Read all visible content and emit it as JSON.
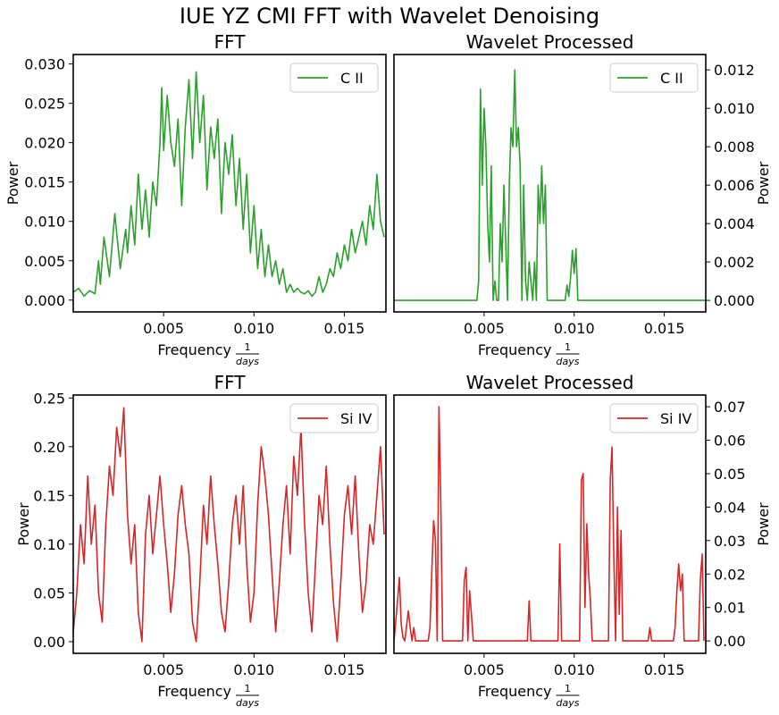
{
  "figure": {
    "suptitle": "IUE YZ CMI FFT with Wavelet Denoising"
  },
  "colors": {
    "c2": "#2ca02c",
    "si4": "#d62728"
  },
  "chart_data": [
    {
      "id": "fft-c2",
      "type": "line",
      "title": "FFT",
      "xlabel": "Frequency",
      "xlabel_fraction": {
        "num": "1",
        "den": "days"
      },
      "ylabel": "Power",
      "ylabel_side": "left",
      "xlim": [
        0.0,
        0.0173
      ],
      "ylim": [
        -0.0015,
        0.0312
      ],
      "xticks": [
        0.005,
        0.01,
        0.015
      ],
      "xtick_labels": [
        "0.005",
        "0.010",
        "0.015"
      ],
      "yticks": [
        0.0,
        0.005,
        0.01,
        0.015,
        0.02,
        0.025,
        0.03
      ],
      "ytick_labels": [
        "0.000",
        "0.005",
        "0.010",
        "0.015",
        "0.020",
        "0.025",
        "0.030"
      ],
      "grid": false,
      "legend_position": "top-right",
      "series": [
        {
          "name": "C II",
          "color": "#2ca02c",
          "x": [
            0.0,
            0.0003,
            0.0006,
            0.0009,
            0.0012,
            0.0014,
            0.0015,
            0.0017,
            0.002,
            0.0023,
            0.0026,
            0.0029,
            0.003,
            0.0032,
            0.0034,
            0.0036,
            0.0038,
            0.004,
            0.0042,
            0.0044,
            0.0046,
            0.0048,
            0.0049,
            0.005,
            0.0052,
            0.0054,
            0.0056,
            0.0058,
            0.006,
            0.0062,
            0.0064,
            0.0066,
            0.0068,
            0.007,
            0.0072,
            0.0074,
            0.0076,
            0.0078,
            0.008,
            0.0082,
            0.0084,
            0.0086,
            0.0088,
            0.009,
            0.0092,
            0.0094,
            0.0096,
            0.0098,
            0.01,
            0.0102,
            0.0104,
            0.0106,
            0.0108,
            0.011,
            0.0112,
            0.0114,
            0.0116,
            0.0118,
            0.012,
            0.0122,
            0.0124,
            0.0126,
            0.0128,
            0.013,
            0.0132,
            0.0134,
            0.0136,
            0.0138,
            0.014,
            0.0142,
            0.0144,
            0.0146,
            0.0148,
            0.015,
            0.0152,
            0.0154,
            0.0156,
            0.0158,
            0.016,
            0.0162,
            0.0164,
            0.0166,
            0.0168,
            0.017,
            0.0172
          ],
          "values": [
            0.001,
            0.0015,
            0.0005,
            0.0012,
            0.0008,
            0.005,
            0.002,
            0.008,
            0.003,
            0.011,
            0.004,
            0.009,
            0.006,
            0.012,
            0.007,
            0.016,
            0.009,
            0.014,
            0.008,
            0.015,
            0.012,
            0.02,
            0.027,
            0.019,
            0.026,
            0.02,
            0.017,
            0.023,
            0.012,
            0.022,
            0.028,
            0.018,
            0.029,
            0.02,
            0.026,
            0.014,
            0.022,
            0.018,
            0.023,
            0.011,
            0.02,
            0.016,
            0.021,
            0.012,
            0.018,
            0.009,
            0.016,
            0.006,
            0.012,
            0.004,
            0.009,
            0.003,
            0.007,
            0.003,
            0.005,
            0.002,
            0.004,
            0.001,
            0.002,
            0.001,
            0.0015,
            0.001,
            0.0008,
            0.0012,
            0.0005,
            0.001,
            0.003,
            0.001,
            0.002,
            0.004,
            0.003,
            0.006,
            0.004,
            0.007,
            0.005,
            0.009,
            0.006,
            0.008,
            0.01,
            0.007,
            0.012,
            0.009,
            0.016,
            0.01,
            0.008
          ]
        }
      ]
    },
    {
      "id": "wav-c2",
      "type": "line",
      "title": "Wavelet Processed",
      "xlabel": "Frequency",
      "xlabel_fraction": {
        "num": "1",
        "den": "days"
      },
      "ylabel": "Power",
      "ylabel_side": "right",
      "xlim": [
        0.0,
        0.0173
      ],
      "ylim": [
        -0.0006,
        0.0128
      ],
      "xticks": [
        0.005,
        0.01,
        0.015
      ],
      "xtick_labels": [
        "0.005",
        "0.010",
        "0.015"
      ],
      "yticks": [
        0.0,
        0.002,
        0.004,
        0.006,
        0.008,
        0.01,
        0.012
      ],
      "ytick_labels": [
        "0.000",
        "0.002",
        "0.004",
        "0.006",
        "0.008",
        "0.010",
        "0.012"
      ],
      "grid": false,
      "legend_position": "top-right",
      "series": [
        {
          "name": "C II",
          "color": "#2ca02c",
          "x": [
            0.0,
            0.0046,
            0.0047,
            0.0048,
            0.0049,
            0.005,
            0.0051,
            0.0052,
            0.0053,
            0.0054,
            0.0055,
            0.0056,
            0.0057,
            0.0058,
            0.0059,
            0.006,
            0.0061,
            0.0062,
            0.0063,
            0.0064,
            0.0065,
            0.0066,
            0.0067,
            0.0068,
            0.0069,
            0.007,
            0.0071,
            0.0072,
            0.0073,
            0.0074,
            0.0075,
            0.0076,
            0.0077,
            0.0078,
            0.0079,
            0.008,
            0.0081,
            0.0082,
            0.0083,
            0.0084,
            0.0085,
            0.0095,
            0.0096,
            0.0097,
            0.0098,
            0.0099,
            0.01,
            0.0101,
            0.0102,
            0.0173
          ],
          "values": [
            0.0,
            0.0,
            0.001,
            0.011,
            0.006,
            0.01,
            0.008,
            0.004,
            0.002,
            0.007,
            0.0,
            0.001,
            0.0,
            0.0,
            0.004,
            0.002,
            0.006,
            0.003,
            0.0,
            0.006,
            0.009,
            0.008,
            0.012,
            0.008,
            0.009,
            0.007,
            0.0,
            0.006,
            0.001,
            0.0,
            0.002,
            0.001,
            0.0,
            0.002,
            0.0,
            0.006,
            0.004,
            0.007,
            0.004,
            0.006,
            0.0,
            0.0,
            0.0008,
            0.0002,
            0.0012,
            0.0026,
            0.0014,
            0.0027,
            0.0,
            0.0
          ]
        }
      ]
    },
    {
      "id": "fft-si4",
      "type": "line",
      "title": "FFT",
      "xlabel": "Frequency",
      "xlabel_fraction": {
        "num": "1",
        "den": "days"
      },
      "ylabel": "Power",
      "ylabel_side": "left",
      "xlim": [
        0.0,
        0.0173
      ],
      "ylim": [
        -0.012,
        0.253
      ],
      "xticks": [
        0.005,
        0.01,
        0.015
      ],
      "xtick_labels": [
        "0.005",
        "0.010",
        "0.015"
      ],
      "yticks": [
        0.0,
        0.05,
        0.1,
        0.15,
        0.2,
        0.25
      ],
      "ytick_labels": [
        "0.00",
        "0.05",
        "0.10",
        "0.15",
        "0.20",
        "0.25"
      ],
      "grid": false,
      "legend_position": "top-right",
      "series": [
        {
          "name": "Si IV",
          "color": "#d62728",
          "x": [
            0.0,
            0.0002,
            0.0004,
            0.0006,
            0.0008,
            0.001,
            0.0012,
            0.0014,
            0.0016,
            0.0018,
            0.002,
            0.0022,
            0.0024,
            0.0026,
            0.0028,
            0.003,
            0.0032,
            0.0034,
            0.0036,
            0.0038,
            0.004,
            0.0042,
            0.0044,
            0.0046,
            0.0048,
            0.005,
            0.0052,
            0.0054,
            0.0056,
            0.0058,
            0.006,
            0.0062,
            0.0064,
            0.0066,
            0.0068,
            0.007,
            0.0072,
            0.0074,
            0.0076,
            0.0078,
            0.008,
            0.0082,
            0.0084,
            0.0086,
            0.0088,
            0.009,
            0.0092,
            0.0094,
            0.0096,
            0.0098,
            0.01,
            0.0102,
            0.0104,
            0.0106,
            0.0108,
            0.011,
            0.0112,
            0.0114,
            0.0116,
            0.0118,
            0.012,
            0.0122,
            0.0124,
            0.0126,
            0.0128,
            0.013,
            0.0132,
            0.0134,
            0.0136,
            0.0138,
            0.014,
            0.0142,
            0.0144,
            0.0146,
            0.0148,
            0.015,
            0.0152,
            0.0154,
            0.0156,
            0.0158,
            0.016,
            0.0162,
            0.0164,
            0.0166,
            0.0168,
            0.017,
            0.0172
          ],
          "values": [
            0.01,
            0.05,
            0.12,
            0.08,
            0.17,
            0.1,
            0.14,
            0.05,
            0.02,
            0.12,
            0.18,
            0.15,
            0.22,
            0.19,
            0.24,
            0.13,
            0.08,
            0.12,
            0.03,
            0.0,
            0.11,
            0.15,
            0.09,
            0.13,
            0.17,
            0.12,
            0.08,
            0.03,
            0.07,
            0.13,
            0.16,
            0.12,
            0.09,
            0.02,
            0.0,
            0.06,
            0.14,
            0.1,
            0.17,
            0.12,
            0.08,
            0.03,
            0.01,
            0.06,
            0.12,
            0.15,
            0.1,
            0.16,
            0.08,
            0.02,
            0.05,
            0.14,
            0.2,
            0.17,
            0.13,
            0.07,
            0.01,
            0.06,
            0.12,
            0.16,
            0.09,
            0.19,
            0.15,
            0.22,
            0.12,
            0.05,
            0.01,
            0.08,
            0.15,
            0.12,
            0.18,
            0.1,
            0.04,
            0.0,
            0.06,
            0.13,
            0.16,
            0.11,
            0.17,
            0.09,
            0.03,
            0.06,
            0.12,
            0.1,
            0.15,
            0.2,
            0.11
          ]
        }
      ]
    },
    {
      "id": "wav-si4",
      "type": "line",
      "title": "Wavelet Processed",
      "xlabel": "Frequency",
      "xlabel_fraction": {
        "num": "1",
        "den": "days"
      },
      "ylabel": "Power",
      "ylabel_side": "right",
      "xlim": [
        0.0,
        0.0173
      ],
      "ylim": [
        -0.0037,
        0.0735
      ],
      "xticks": [
        0.005,
        0.01,
        0.015
      ],
      "xtick_labels": [
        "0.005",
        "0.010",
        "0.015"
      ],
      "yticks": [
        0.0,
        0.01,
        0.02,
        0.03,
        0.04,
        0.05,
        0.06,
        0.07
      ],
      "ytick_labels": [
        "0.00",
        "0.01",
        "0.02",
        "0.03",
        "0.04",
        "0.05",
        "0.06",
        "0.07"
      ],
      "grid": false,
      "legend_position": "top-right",
      "series": [
        {
          "name": "Si IV",
          "color": "#d62728",
          "x": [
            0.0,
            0.0002,
            0.0003,
            0.0004,
            0.0005,
            0.0006,
            0.0008,
            0.0009,
            0.001,
            0.0011,
            0.0012,
            0.0019,
            0.002,
            0.0021,
            0.0022,
            0.0023,
            0.0024,
            0.0025,
            0.0026,
            0.0027,
            0.0028,
            0.0038,
            0.0039,
            0.004,
            0.0041,
            0.0042,
            0.0043,
            0.0044,
            0.0074,
            0.0075,
            0.0076,
            0.0091,
            0.0092,
            0.0093,
            0.0103,
            0.0104,
            0.0105,
            0.0106,
            0.0107,
            0.0108,
            0.0109,
            0.011,
            0.0119,
            0.012,
            0.0121,
            0.0122,
            0.0123,
            0.0124,
            0.0125,
            0.0126,
            0.0127,
            0.0141,
            0.0142,
            0.0143,
            0.0155,
            0.0156,
            0.0157,
            0.0158,
            0.0159,
            0.016,
            0.0161,
            0.0162,
            0.0169,
            0.017,
            0.0171,
            0.0172
          ],
          "values": [
            0.0,
            0.012,
            0.019,
            0.005,
            0.001,
            0.0,
            0.009,
            0.004,
            0.0,
            0.004,
            0.0,
            0.0,
            0.004,
            0.021,
            0.036,
            0.03,
            0.0,
            0.07,
            0.04,
            0.0,
            0.0,
            0.0,
            0.018,
            0.022,
            0.0,
            0.015,
            0.008,
            0.0,
            0.0,
            0.012,
            0.0,
            0.0,
            0.029,
            0.0,
            0.0,
            0.048,
            0.05,
            0.01,
            0.035,
            0.02,
            0.012,
            0.0,
            0.0,
            0.048,
            0.058,
            0.025,
            0.0,
            0.04,
            0.008,
            0.033,
            0.0,
            0.0,
            0.004,
            0.0,
            0.0,
            0.004,
            0.015,
            0.023,
            0.015,
            0.02,
            0.0,
            0.0,
            0.0,
            0.018,
            0.026,
            0.0
          ]
        }
      ]
    }
  ]
}
